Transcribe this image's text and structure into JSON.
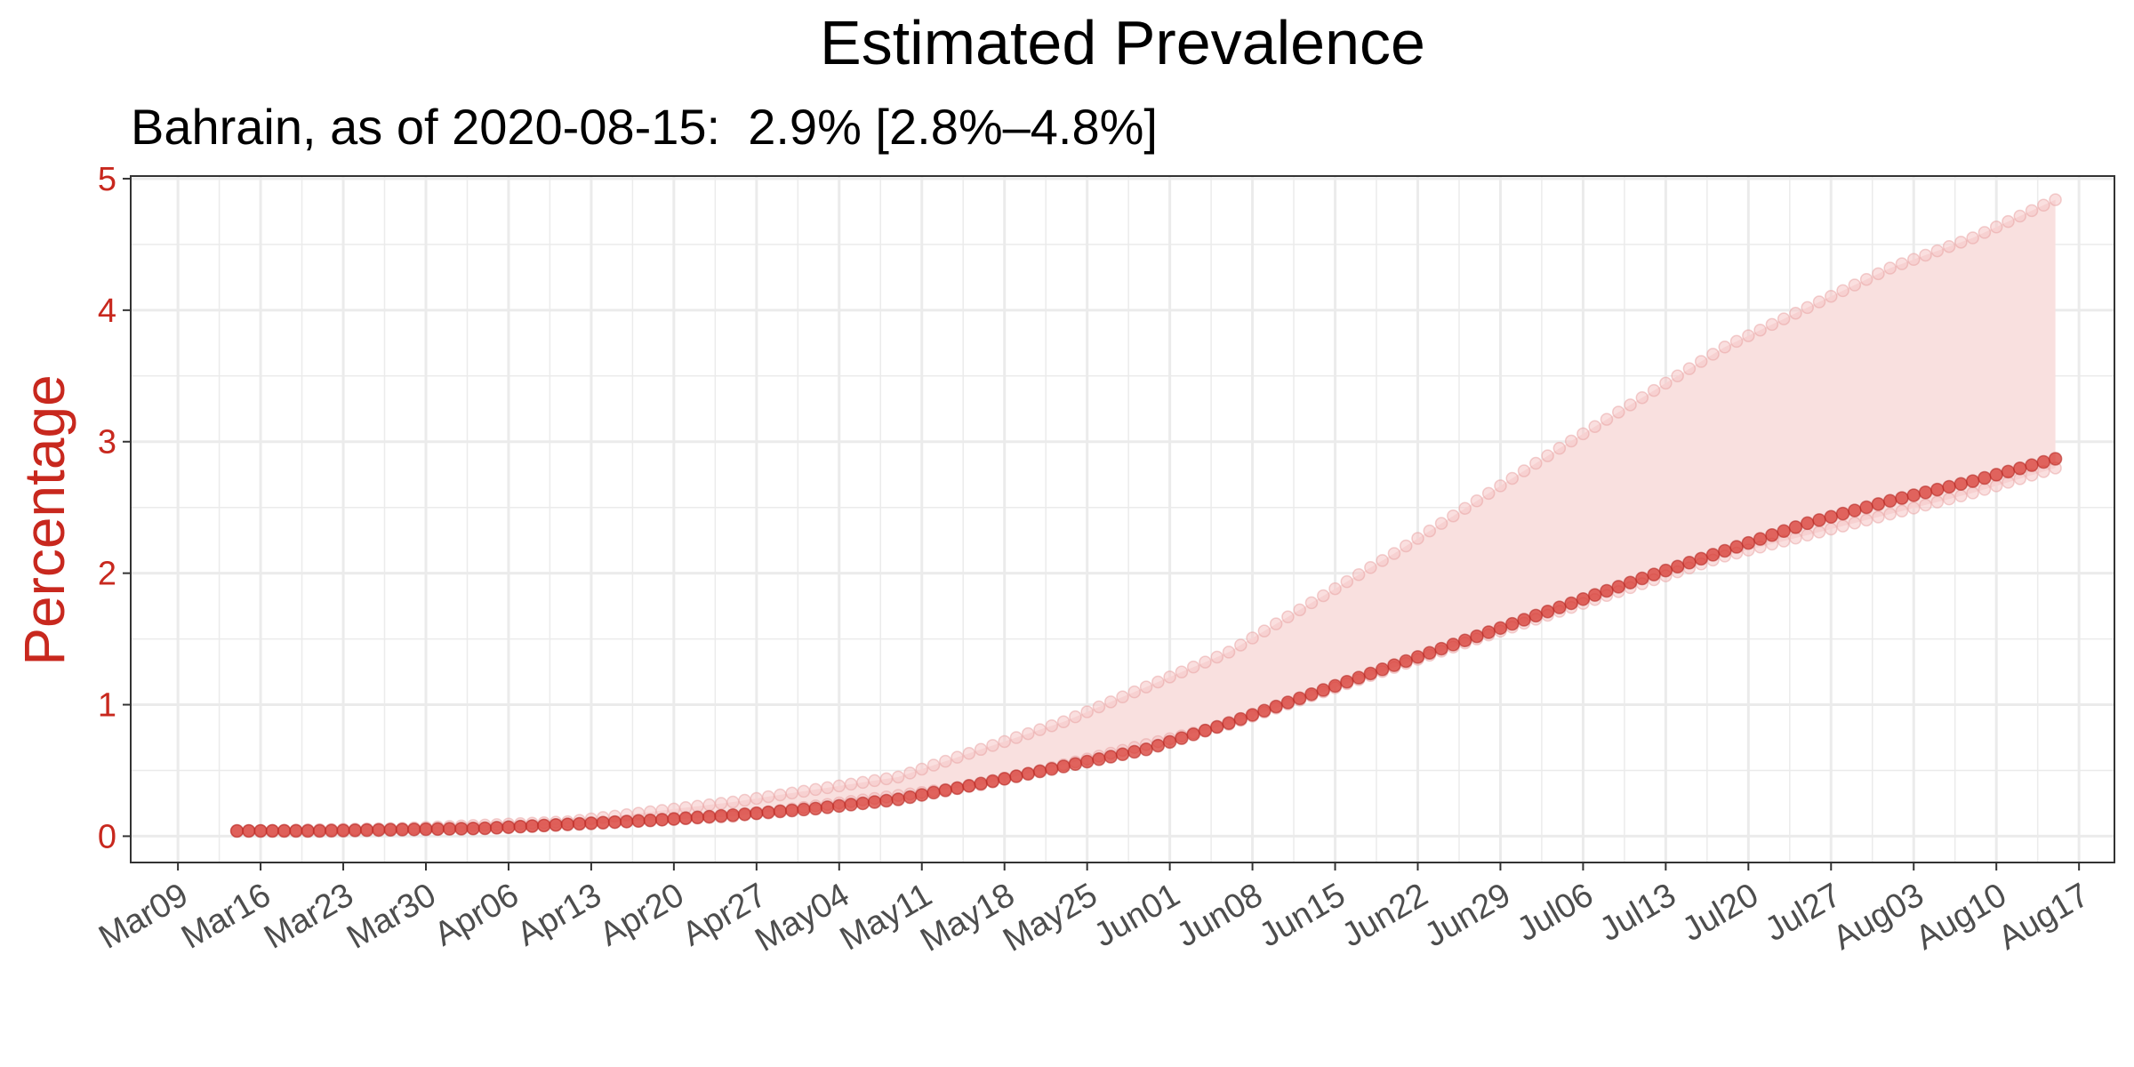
{
  "chart_data": {
    "type": "line",
    "title": "Estimated Prevalence",
    "subtitle": "Bahrain, as of 2020-08-15:  2.9% [2.8%–4.8%]",
    "xlabel": "",
    "ylabel": "Percentage",
    "xlim": [
      "2020-03-05",
      "2020-08-20"
    ],
    "ylim": [
      -0.2,
      5.02
    ],
    "x_start": "2020-03-14",
    "x_end": "2020-08-15",
    "x_tick_labels": [
      "Mar09",
      "Mar16",
      "Mar23",
      "Mar30",
      "Apr06",
      "Apr13",
      "Apr20",
      "Apr27",
      "May04",
      "May11",
      "May18",
      "May25",
      "Jun01",
      "Jun08",
      "Jun15",
      "Jun22",
      "Jun29",
      "Jul06",
      "Jul13",
      "Jul20",
      "Jul27",
      "Aug03",
      "Aug10",
      "Aug17"
    ],
    "y_ticks": [
      0,
      1,
      2,
      3,
      4,
      5
    ],
    "grid": true,
    "series_keypoints": {
      "estimate": [
        [
          "2020-03-14",
          0.04
        ],
        [
          "2020-03-21",
          0.04
        ],
        [
          "2020-03-28",
          0.05
        ],
        [
          "2020-04-04",
          0.06
        ],
        [
          "2020-04-11",
          0.09
        ],
        [
          "2020-04-18",
          0.12
        ],
        [
          "2020-04-25",
          0.16
        ],
        [
          "2020-05-02",
          0.21
        ],
        [
          "2020-05-09",
          0.28
        ],
        [
          "2020-05-16",
          0.4
        ],
        [
          "2020-05-23",
          0.53
        ],
        [
          "2020-05-30",
          0.66
        ],
        [
          "2020-06-06",
          0.86
        ],
        [
          "2020-06-13",
          1.08
        ],
        [
          "2020-06-20",
          1.3
        ],
        [
          "2020-06-27",
          1.52
        ],
        [
          "2020-07-04",
          1.74
        ],
        [
          "2020-07-11",
          1.96
        ],
        [
          "2020-07-18",
          2.17
        ],
        [
          "2020-07-25",
          2.38
        ],
        [
          "2020-08-01",
          2.55
        ],
        [
          "2020-08-08",
          2.7
        ],
        [
          "2020-08-15",
          2.87
        ]
      ],
      "lower": [
        [
          "2020-03-14",
          0.04
        ],
        [
          "2020-04-04",
          0.06
        ],
        [
          "2020-04-25",
          0.15
        ],
        [
          "2020-05-16",
          0.39
        ],
        [
          "2020-06-06",
          0.85
        ],
        [
          "2020-06-27",
          1.5
        ],
        [
          "2020-07-18",
          2.13
        ],
        [
          "2020-08-08",
          2.61
        ],
        [
          "2020-08-15",
          2.8
        ]
      ],
      "upper": [
        [
          "2020-03-14",
          0.04
        ],
        [
          "2020-03-28",
          0.06
        ],
        [
          "2020-04-11",
          0.11
        ],
        [
          "2020-04-25",
          0.26
        ],
        [
          "2020-05-09",
          0.45
        ],
        [
          "2020-05-23",
          0.87
        ],
        [
          "2020-06-06",
          1.4
        ],
        [
          "2020-06-20",
          2.15
        ],
        [
          "2020-07-04",
          2.95
        ],
        [
          "2020-07-18",
          3.72
        ],
        [
          "2020-08-01",
          4.32
        ],
        [
          "2020-08-08",
          4.55
        ],
        [
          "2020-08-15",
          4.84
        ]
      ]
    },
    "colors": {
      "estimate": "#d73a32",
      "bound_fill": "#f6c4c4",
      "band": "#f9e0df",
      "axis_text_y": "#c8281e",
      "axis_text_x": "#4d4d4d",
      "grid": "#ebebeb"
    }
  }
}
